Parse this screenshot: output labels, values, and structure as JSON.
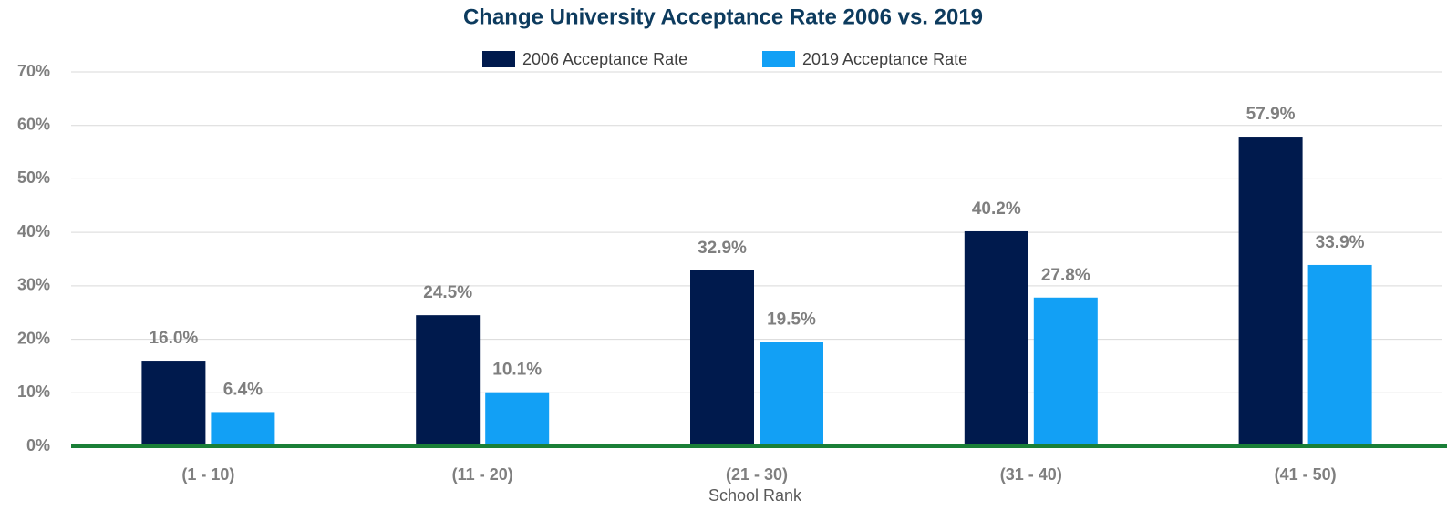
{
  "chart_data": {
    "type": "bar",
    "title": "Change University Acceptance Rate 2006 vs. 2019",
    "x_label": "School Rank",
    "categories": [
      "(1 - 10)",
      "(11 - 20)",
      "(21 - 30)",
      "(31 - 40)",
      "(41 - 50)"
    ],
    "series": [
      {
        "name": "2006 Acceptance Rate",
        "color": "#001a4d",
        "values": [
          16.0,
          24.5,
          32.9,
          40.2,
          57.9
        ],
        "value_labels": [
          "16.0%",
          "24.5%",
          "32.9%",
          "40.2%",
          "57.9%"
        ]
      },
      {
        "name": "2019 Acceptance Rate",
        "color": "#12a0f5",
        "values": [
          6.4,
          10.1,
          19.5,
          27.8,
          33.9
        ],
        "value_labels": [
          "6.4%",
          "10.1%",
          "19.5%",
          "27.8%",
          "33.9%"
        ]
      }
    ],
    "ylim": [
      0,
      70
    ],
    "yticks": [
      {
        "value": 0,
        "label": "0%"
      },
      {
        "value": 10,
        "label": "10%"
      },
      {
        "value": 20,
        "label": "20%"
      },
      {
        "value": 30,
        "label": "30%"
      },
      {
        "value": 40,
        "label": "40%"
      },
      {
        "value": 50,
        "label": "50%"
      },
      {
        "value": 60,
        "label": "60%"
      },
      {
        "value": 70,
        "label": "70%"
      }
    ],
    "grid": true,
    "legend": "top"
  }
}
